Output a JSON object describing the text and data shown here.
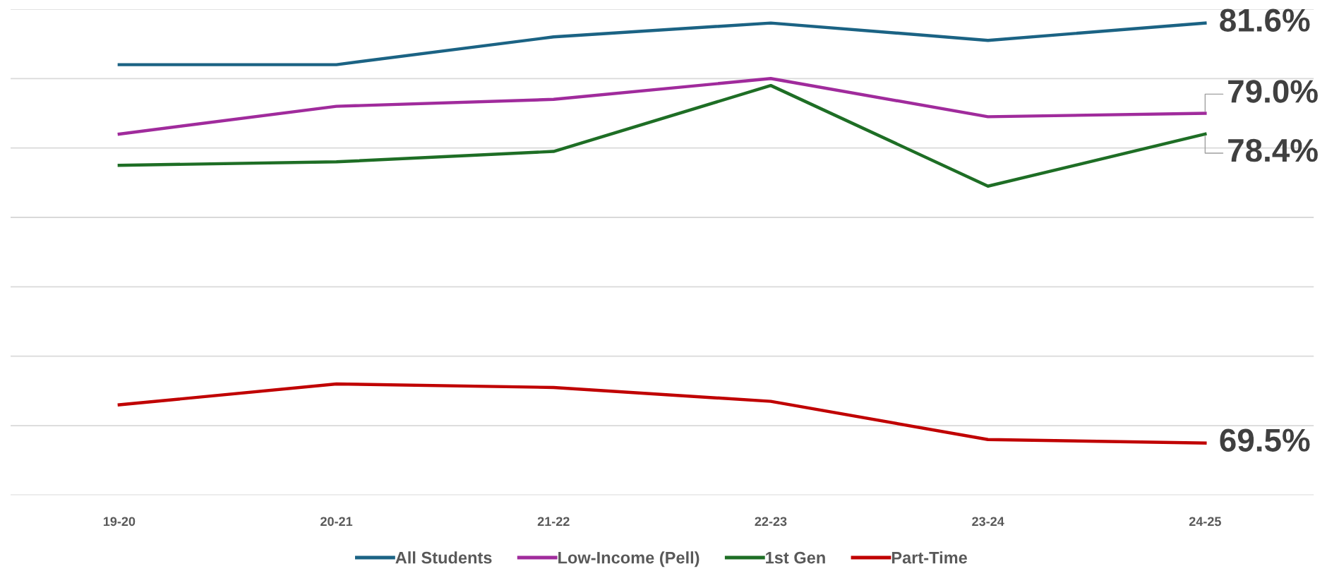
{
  "chart_data": {
    "type": "line",
    "categories": [
      "19-20",
      "20-21",
      "21-22",
      "22-23",
      "23-24",
      "24-25"
    ],
    "series": [
      {
        "name": "All Students",
        "color": "#1b6384",
        "values": [
          80.4,
          80.4,
          81.2,
          81.6,
          81.1,
          81.6
        ],
        "value_labels": [
          null,
          null,
          null,
          null,
          null,
          "81.6%"
        ]
      },
      {
        "name": "Low-Income (Pell)",
        "color": "#a02b9c",
        "values": [
          78.4,
          79.2,
          79.4,
          80.0,
          78.9,
          79.0
        ],
        "value_labels": [
          null,
          null,
          null,
          null,
          null,
          "79.0%"
        ]
      },
      {
        "name": "1st Gen",
        "color": "#1e6e25",
        "values": [
          77.5,
          77.6,
          77.9,
          79.8,
          76.9,
          78.4
        ],
        "value_labels": [
          null,
          null,
          null,
          null,
          null,
          "78.4%"
        ]
      },
      {
        "name": "Part-Time",
        "color": "#c00000",
        "values": [
          70.6,
          71.2,
          71.1,
          70.7,
          69.6,
          69.5
        ],
        "value_labels": [
          null,
          null,
          null,
          null,
          null,
          "69.5%"
        ]
      }
    ],
    "ylim": [
      68,
      82
    ],
    "yticks": [
      {
        "value": 68,
        "label": null
      },
      {
        "value": 70,
        "label": null
      },
      {
        "value": 72,
        "label": null
      },
      {
        "value": 74,
        "label": null
      },
      {
        "value": 76,
        "label": null
      },
      {
        "value": 78,
        "label": null
      },
      {
        "value": 80,
        "label": null
      },
      {
        "value": 82,
        "label": null
      }
    ],
    "tick_labels": "x",
    "grid": "y",
    "legend": "bottom",
    "marker": "none",
    "line_style": "solid"
  }
}
